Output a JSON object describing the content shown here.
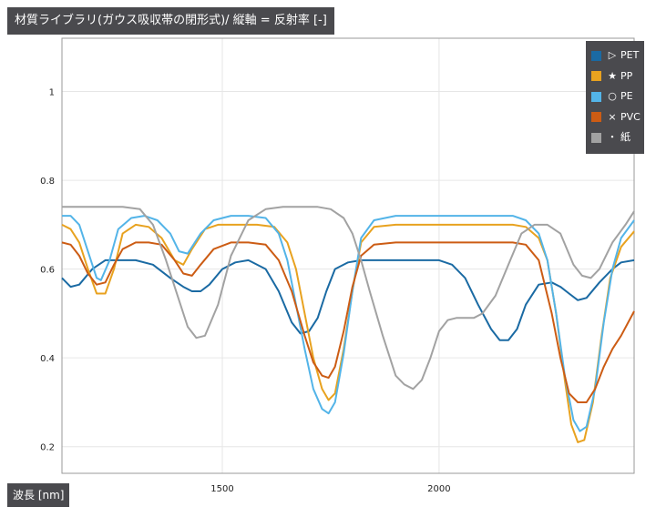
{
  "chart_data": {
    "type": "line",
    "title": "材質ライブラリ(ガウス吸収帯の閉形式)/ 縦軸 = 反射率 [-]",
    "xlabel": "波長 [nm]",
    "ylabel": "",
    "xlim": [
      1130,
      2450
    ],
    "ylim": [
      0.14,
      1.12
    ],
    "xticks": [
      1500,
      2000
    ],
    "yticks": [
      0.2,
      0.4,
      0.6,
      0.8,
      1
    ],
    "ytick_labels": [
      "0.2",
      "0.4",
      "0.6",
      "0.8",
      "1"
    ],
    "xtick_labels": [
      "1500",
      "2000"
    ],
    "grid": true,
    "legend_position": "top-right",
    "series": [
      {
        "name": "PET",
        "marker": "▷",
        "color": "#1a6aa3",
        "x": [
          1130,
          1150,
          1170,
          1200,
          1230,
          1270,
          1300,
          1340,
          1380,
          1410,
          1430,
          1450,
          1470,
          1500,
          1530,
          1560,
          1600,
          1630,
          1660,
          1680,
          1700,
          1720,
          1740,
          1760,
          1790,
          1820,
          1850,
          1900,
          1950,
          2000,
          2030,
          2060,
          2090,
          2120,
          2140,
          2160,
          2180,
          2200,
          2230,
          2260,
          2280,
          2300,
          2320,
          2340,
          2370,
          2400,
          2420,
          2450
        ],
        "y": [
          0.58,
          0.56,
          0.565,
          0.6,
          0.62,
          0.62,
          0.62,
          0.61,
          0.58,
          0.56,
          0.55,
          0.55,
          0.565,
          0.6,
          0.615,
          0.62,
          0.6,
          0.55,
          0.48,
          0.455,
          0.46,
          0.49,
          0.55,
          0.6,
          0.615,
          0.62,
          0.62,
          0.62,
          0.62,
          0.62,
          0.61,
          0.58,
          0.52,
          0.465,
          0.44,
          0.44,
          0.465,
          0.52,
          0.565,
          0.57,
          0.56,
          0.545,
          0.53,
          0.535,
          0.57,
          0.6,
          0.615,
          0.62
        ]
      },
      {
        "name": "PP",
        "marker": "★",
        "color": "#e8a21f",
        "x": [
          1130,
          1150,
          1170,
          1190,
          1210,
          1230,
          1250,
          1270,
          1300,
          1330,
          1360,
          1390,
          1410,
          1430,
          1460,
          1490,
          1530,
          1580,
          1620,
          1650,
          1670,
          1690,
          1710,
          1730,
          1745,
          1760,
          1780,
          1800,
          1820,
          1850,
          1900,
          2000,
          2100,
          2170,
          2200,
          2230,
          2250,
          2270,
          2290,
          2305,
          2320,
          2335,
          2355,
          2375,
          2395,
          2420,
          2450
        ],
        "y": [
          0.7,
          0.69,
          0.66,
          0.6,
          0.545,
          0.545,
          0.6,
          0.68,
          0.7,
          0.695,
          0.67,
          0.62,
          0.61,
          0.645,
          0.69,
          0.7,
          0.7,
          0.7,
          0.695,
          0.66,
          0.6,
          0.5,
          0.4,
          0.33,
          0.305,
          0.32,
          0.42,
          0.55,
          0.66,
          0.695,
          0.7,
          0.7,
          0.7,
          0.7,
          0.695,
          0.67,
          0.62,
          0.5,
          0.35,
          0.25,
          0.21,
          0.215,
          0.3,
          0.45,
          0.58,
          0.65,
          0.685
        ]
      },
      {
        "name": "PE",
        "marker": "○",
        "color": "#53b4e8",
        "x": [
          1130,
          1150,
          1170,
          1190,
          1210,
          1220,
          1240,
          1260,
          1290,
          1320,
          1350,
          1380,
          1400,
          1420,
          1450,
          1480,
          1520,
          1560,
          1600,
          1630,
          1650,
          1670,
          1690,
          1710,
          1730,
          1745,
          1760,
          1780,
          1800,
          1820,
          1850,
          1900,
          2000,
          2100,
          2170,
          2200,
          2230,
          2250,
          2270,
          2290,
          2310,
          2325,
          2340,
          2360,
          2380,
          2400,
          2420,
          2450
        ],
        "y": [
          0.72,
          0.72,
          0.7,
          0.64,
          0.58,
          0.575,
          0.62,
          0.69,
          0.715,
          0.72,
          0.71,
          0.68,
          0.64,
          0.635,
          0.68,
          0.71,
          0.72,
          0.72,
          0.715,
          0.68,
          0.62,
          0.52,
          0.42,
          0.33,
          0.285,
          0.275,
          0.3,
          0.41,
          0.55,
          0.67,
          0.71,
          0.72,
          0.72,
          0.72,
          0.72,
          0.71,
          0.68,
          0.62,
          0.5,
          0.36,
          0.26,
          0.235,
          0.245,
          0.33,
          0.48,
          0.6,
          0.67,
          0.71
        ]
      },
      {
        "name": "PVC",
        "marker": "×",
        "color": "#cc5c14",
        "x": [
          1130,
          1150,
          1170,
          1190,
          1210,
          1230,
          1250,
          1270,
          1300,
          1330,
          1360,
          1390,
          1410,
          1430,
          1450,
          1480,
          1520,
          1560,
          1600,
          1630,
          1660,
          1690,
          1710,
          1730,
          1745,
          1760,
          1780,
          1800,
          1820,
          1850,
          1900,
          2000,
          2100,
          2170,
          2200,
          2230,
          2260,
          2280,
          2300,
          2320,
          2340,
          2360,
          2380,
          2400,
          2420,
          2450
        ],
        "y": [
          0.66,
          0.655,
          0.63,
          0.59,
          0.565,
          0.57,
          0.61,
          0.645,
          0.66,
          0.66,
          0.655,
          0.62,
          0.59,
          0.585,
          0.61,
          0.645,
          0.66,
          0.66,
          0.655,
          0.62,
          0.55,
          0.45,
          0.39,
          0.36,
          0.355,
          0.38,
          0.46,
          0.56,
          0.63,
          0.655,
          0.66,
          0.66,
          0.66,
          0.66,
          0.655,
          0.62,
          0.5,
          0.4,
          0.32,
          0.3,
          0.3,
          0.33,
          0.38,
          0.42,
          0.45,
          0.505
        ]
      },
      {
        "name": "紙",
        "marker": "・",
        "color": "#a2a2a2",
        "x": [
          1130,
          1200,
          1270,
          1310,
          1340,
          1370,
          1400,
          1420,
          1440,
          1460,
          1490,
          1520,
          1560,
          1600,
          1640,
          1680,
          1720,
          1750,
          1780,
          1800,
          1820,
          1840,
          1870,
          1900,
          1920,
          1940,
          1960,
          1980,
          2000,
          2020,
          2040,
          2060,
          2080,
          2100,
          2130,
          2160,
          2190,
          2220,
          2250,
          2280,
          2310,
          2330,
          2350,
          2370,
          2400,
          2430,
          2450
        ],
        "y": [
          0.74,
          0.74,
          0.74,
          0.735,
          0.7,
          0.62,
          0.53,
          0.47,
          0.445,
          0.45,
          0.52,
          0.63,
          0.71,
          0.735,
          0.74,
          0.74,
          0.74,
          0.735,
          0.715,
          0.68,
          0.62,
          0.55,
          0.45,
          0.36,
          0.34,
          0.33,
          0.35,
          0.4,
          0.46,
          0.485,
          0.49,
          0.49,
          0.49,
          0.5,
          0.54,
          0.61,
          0.68,
          0.7,
          0.7,
          0.68,
          0.61,
          0.585,
          0.58,
          0.6,
          0.66,
          0.7,
          0.73
        ]
      }
    ]
  }
}
